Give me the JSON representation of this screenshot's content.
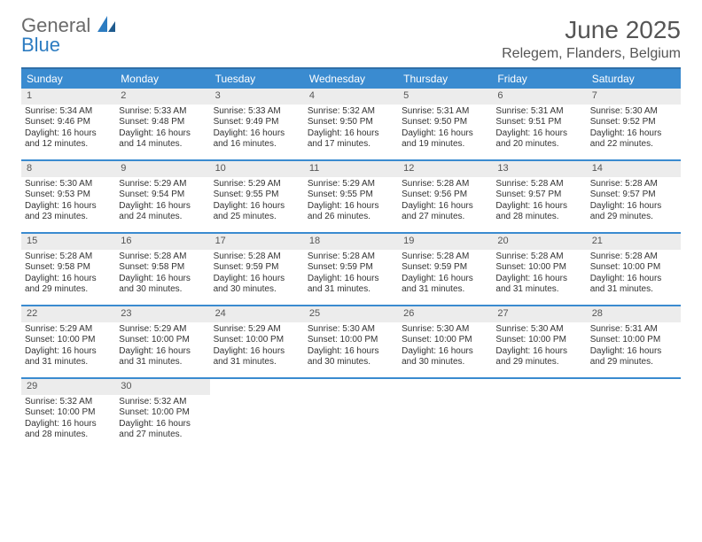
{
  "logo": {
    "word1": "General",
    "word2": "Blue"
  },
  "header": {
    "month_year": "June 2025",
    "location": "Relegem, Flanders, Belgium"
  },
  "colors": {
    "header_bg": "#3a8bd0",
    "header_border_top": "#2f6fa8",
    "row_divider": "#3a8bd0",
    "daynum_bg": "#ececec",
    "text": "#333333",
    "logo_gray": "#6a6a6a",
    "logo_blue": "#2d7cc1",
    "page_bg": "#ffffff"
  },
  "typography": {
    "month_size_pt": 21,
    "location_size_pt": 12,
    "dayhead_size_pt": 9,
    "body_size_pt": 8
  },
  "day_headers": [
    "Sunday",
    "Monday",
    "Tuesday",
    "Wednesday",
    "Thursday",
    "Friday",
    "Saturday"
  ],
  "labels": {
    "sunrise": "Sunrise:",
    "sunset": "Sunset:",
    "daylight": "Daylight:"
  },
  "weeks": [
    [
      {
        "n": "1",
        "sr": "5:34 AM",
        "ss": "9:46 PM",
        "dl": "16 hours and 12 minutes."
      },
      {
        "n": "2",
        "sr": "5:33 AM",
        "ss": "9:48 PM",
        "dl": "16 hours and 14 minutes."
      },
      {
        "n": "3",
        "sr": "5:33 AM",
        "ss": "9:49 PM",
        "dl": "16 hours and 16 minutes."
      },
      {
        "n": "4",
        "sr": "5:32 AM",
        "ss": "9:50 PM",
        "dl": "16 hours and 17 minutes."
      },
      {
        "n": "5",
        "sr": "5:31 AM",
        "ss": "9:50 PM",
        "dl": "16 hours and 19 minutes."
      },
      {
        "n": "6",
        "sr": "5:31 AM",
        "ss": "9:51 PM",
        "dl": "16 hours and 20 minutes."
      },
      {
        "n": "7",
        "sr": "5:30 AM",
        "ss": "9:52 PM",
        "dl": "16 hours and 22 minutes."
      }
    ],
    [
      {
        "n": "8",
        "sr": "5:30 AM",
        "ss": "9:53 PM",
        "dl": "16 hours and 23 minutes."
      },
      {
        "n": "9",
        "sr": "5:29 AM",
        "ss": "9:54 PM",
        "dl": "16 hours and 24 minutes."
      },
      {
        "n": "10",
        "sr": "5:29 AM",
        "ss": "9:55 PM",
        "dl": "16 hours and 25 minutes."
      },
      {
        "n": "11",
        "sr": "5:29 AM",
        "ss": "9:55 PM",
        "dl": "16 hours and 26 minutes."
      },
      {
        "n": "12",
        "sr": "5:28 AM",
        "ss": "9:56 PM",
        "dl": "16 hours and 27 minutes."
      },
      {
        "n": "13",
        "sr": "5:28 AM",
        "ss": "9:57 PM",
        "dl": "16 hours and 28 minutes."
      },
      {
        "n": "14",
        "sr": "5:28 AM",
        "ss": "9:57 PM",
        "dl": "16 hours and 29 minutes."
      }
    ],
    [
      {
        "n": "15",
        "sr": "5:28 AM",
        "ss": "9:58 PM",
        "dl": "16 hours and 29 minutes."
      },
      {
        "n": "16",
        "sr": "5:28 AM",
        "ss": "9:58 PM",
        "dl": "16 hours and 30 minutes."
      },
      {
        "n": "17",
        "sr": "5:28 AM",
        "ss": "9:59 PM",
        "dl": "16 hours and 30 minutes."
      },
      {
        "n": "18",
        "sr": "5:28 AM",
        "ss": "9:59 PM",
        "dl": "16 hours and 31 minutes."
      },
      {
        "n": "19",
        "sr": "5:28 AM",
        "ss": "9:59 PM",
        "dl": "16 hours and 31 minutes."
      },
      {
        "n": "20",
        "sr": "5:28 AM",
        "ss": "10:00 PM",
        "dl": "16 hours and 31 minutes."
      },
      {
        "n": "21",
        "sr": "5:28 AM",
        "ss": "10:00 PM",
        "dl": "16 hours and 31 minutes."
      }
    ],
    [
      {
        "n": "22",
        "sr": "5:29 AM",
        "ss": "10:00 PM",
        "dl": "16 hours and 31 minutes."
      },
      {
        "n": "23",
        "sr": "5:29 AM",
        "ss": "10:00 PM",
        "dl": "16 hours and 31 minutes."
      },
      {
        "n": "24",
        "sr": "5:29 AM",
        "ss": "10:00 PM",
        "dl": "16 hours and 31 minutes."
      },
      {
        "n": "25",
        "sr": "5:30 AM",
        "ss": "10:00 PM",
        "dl": "16 hours and 30 minutes."
      },
      {
        "n": "26",
        "sr": "5:30 AM",
        "ss": "10:00 PM",
        "dl": "16 hours and 30 minutes."
      },
      {
        "n": "27",
        "sr": "5:30 AM",
        "ss": "10:00 PM",
        "dl": "16 hours and 29 minutes."
      },
      {
        "n": "28",
        "sr": "5:31 AM",
        "ss": "10:00 PM",
        "dl": "16 hours and 29 minutes."
      }
    ],
    [
      {
        "n": "29",
        "sr": "5:32 AM",
        "ss": "10:00 PM",
        "dl": "16 hours and 28 minutes."
      },
      {
        "n": "30",
        "sr": "5:32 AM",
        "ss": "10:00 PM",
        "dl": "16 hours and 27 minutes."
      },
      null,
      null,
      null,
      null,
      null
    ]
  ]
}
